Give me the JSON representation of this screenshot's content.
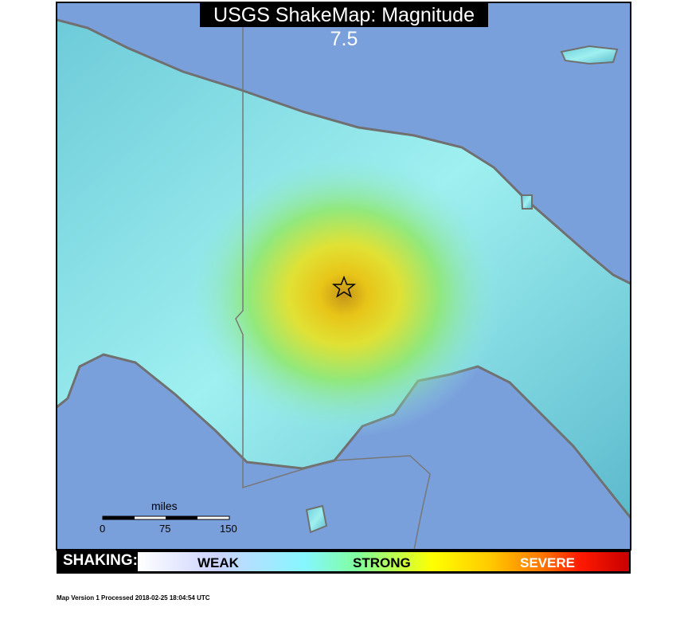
{
  "title": "USGS ShakeMap: Magnitude 7.5",
  "scale_bar": {
    "unit": "miles",
    "ticks": [
      "0",
      "75",
      "150"
    ]
  },
  "legend": {
    "label": "SHAKING:",
    "levels": [
      "WEAK",
      "STRONG",
      "SEVERE"
    ]
  },
  "footer": "Map Version 1 Processed 2018-02-25 18:04:54 UTC",
  "epicenter_icon": "star-icon",
  "colors": {
    "ocean": "#7aa0dc",
    "land": "#8fe8ee",
    "coast": "#707070",
    "strong": "#ffe000",
    "severe": "#c80000"
  }
}
